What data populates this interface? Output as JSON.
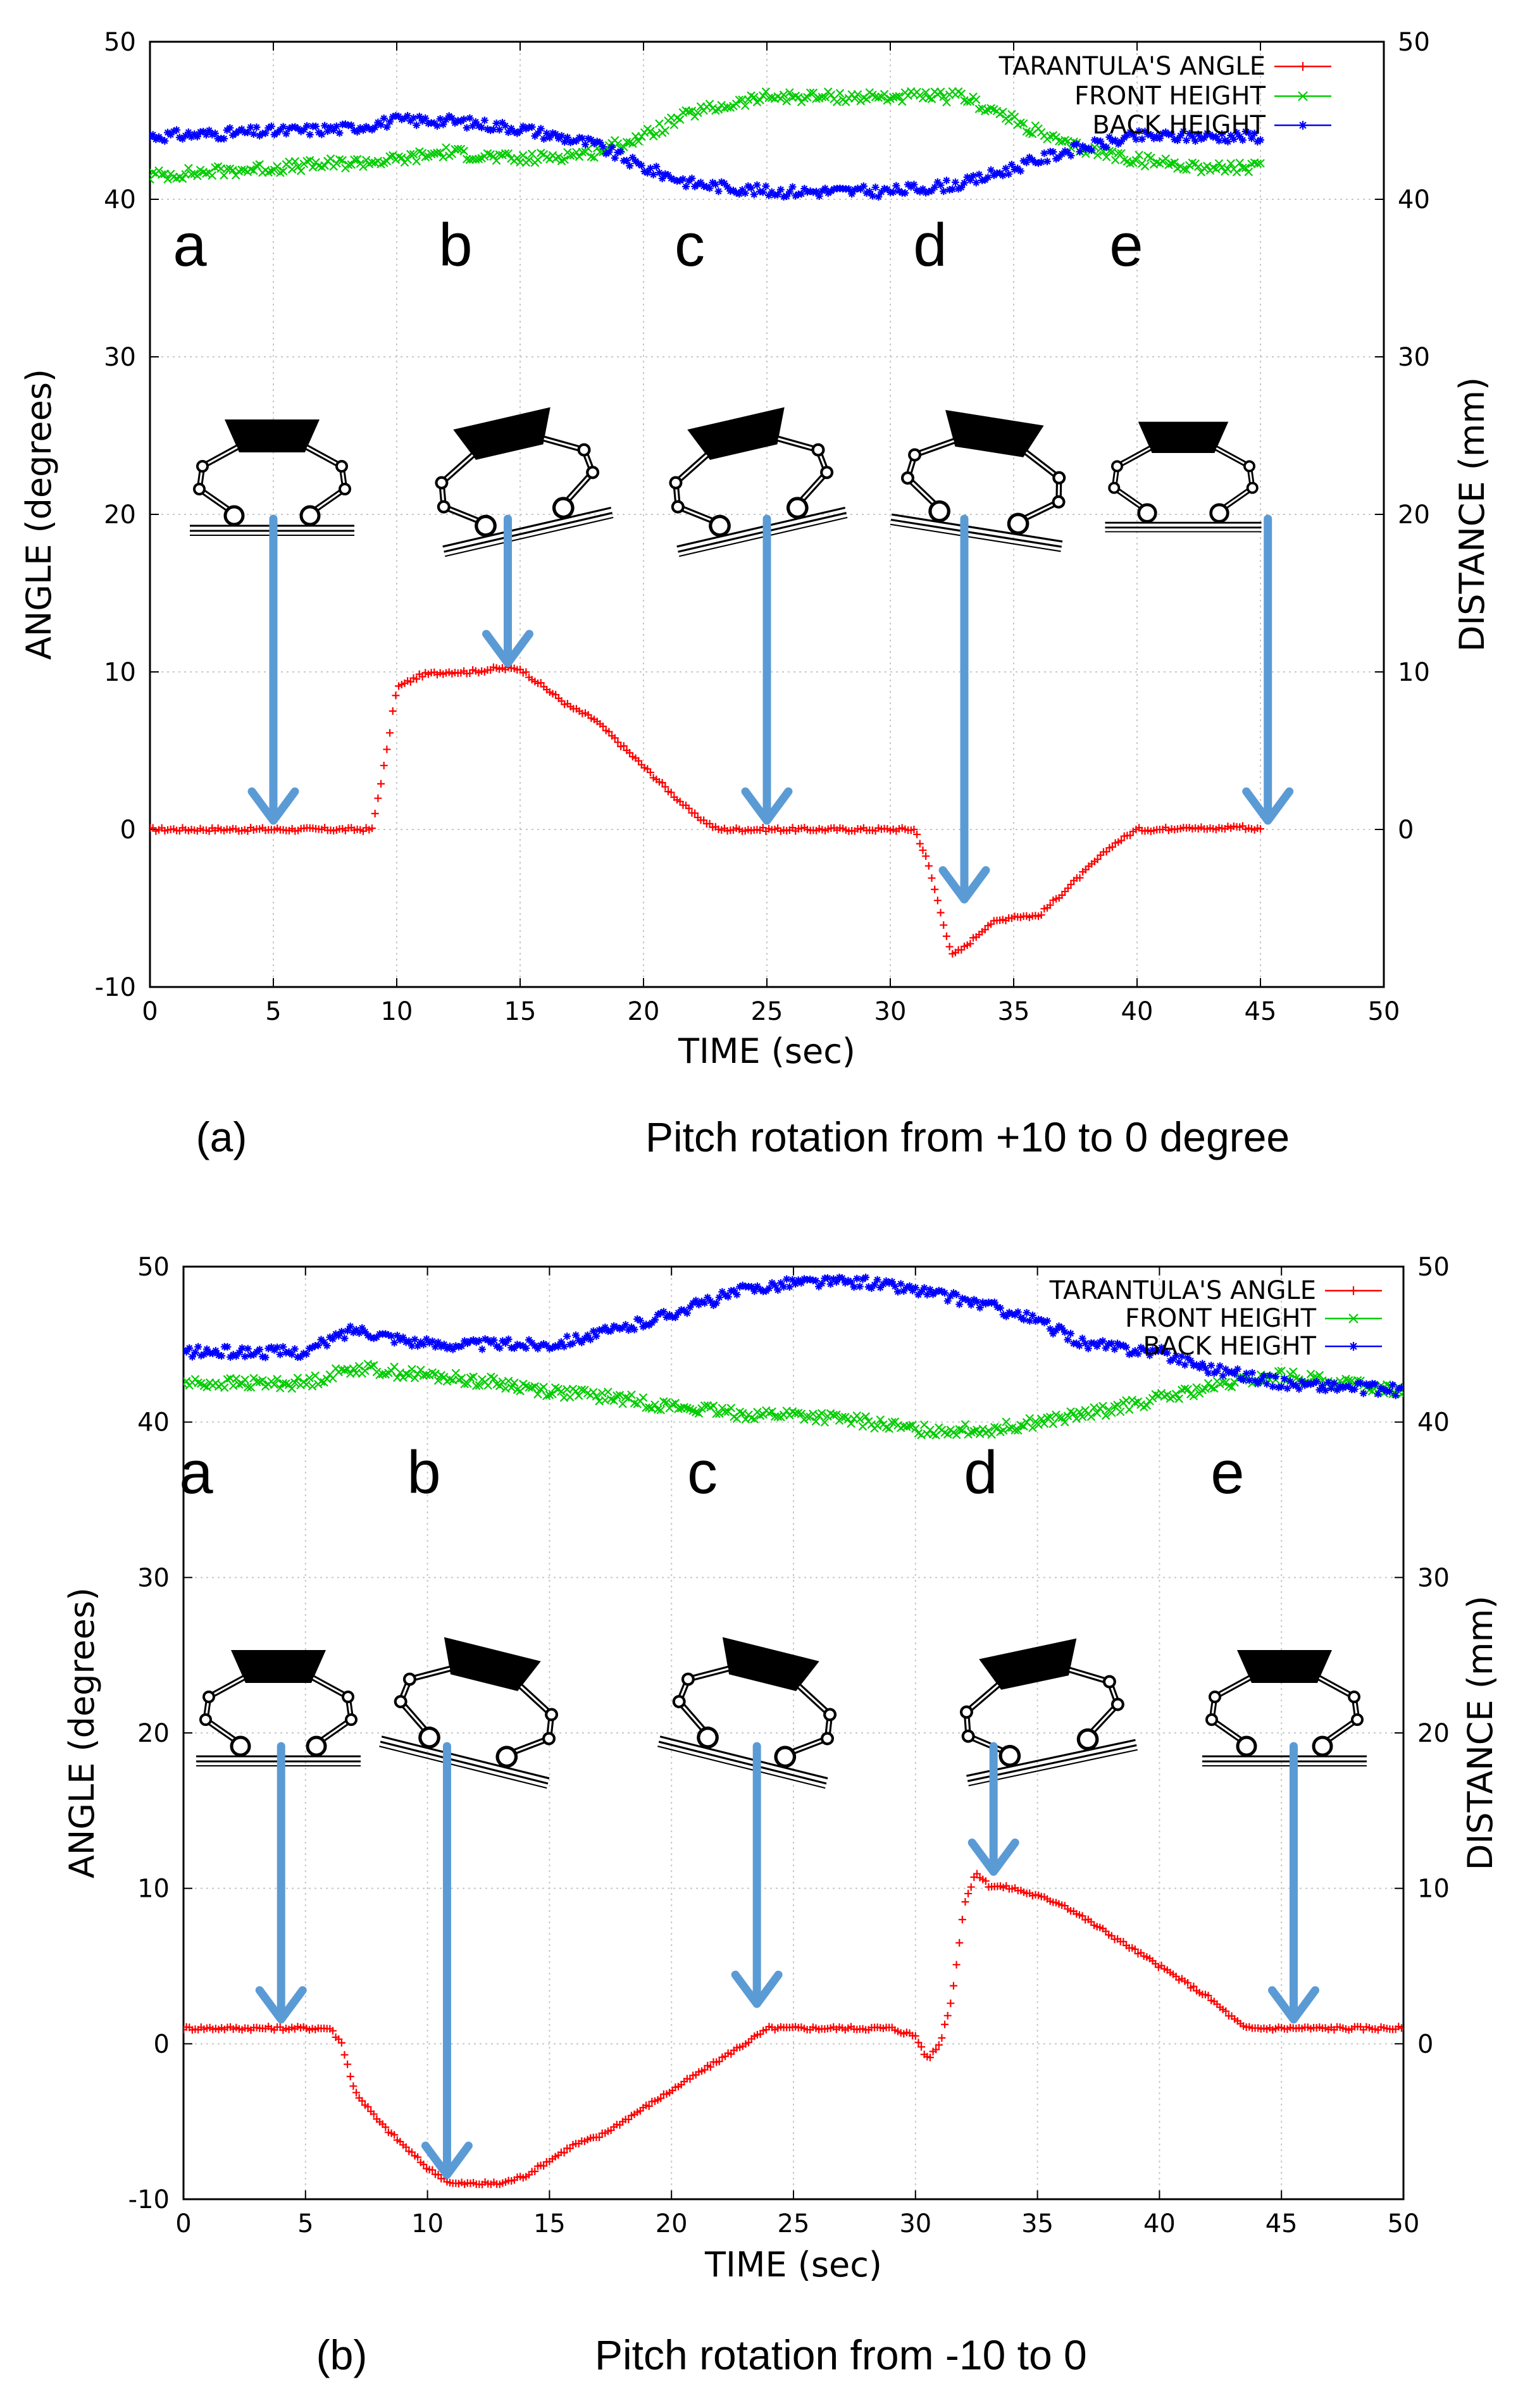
{
  "chart_data": [
    {
      "type": "line",
      "panel": "(a)",
      "caption": "Pitch rotation from +10 to 0 degree",
      "xlabel": "TIME (sec)",
      "ylabel": "ANGLE (degrees)",
      "y2label": "DISTANCE (mm)",
      "xlim": [
        0,
        50
      ],
      "ylim": [
        -10,
        50
      ],
      "y2lim": [
        -10,
        50
      ],
      "xticks": [
        0,
        5,
        10,
        15,
        20,
        25,
        30,
        35,
        40,
        45,
        50
      ],
      "yticks": [
        -10,
        0,
        10,
        20,
        30,
        40,
        50
      ],
      "y2ticks": [
        0,
        10,
        20,
        30,
        40,
        50
      ],
      "grid": true,
      "legend_position": "top-right",
      "series": [
        {
          "name": "TARANTULA'S ANGLE",
          "color": "#ff0000",
          "marker": "+",
          "x": [
            0,
            9,
            9.6,
            10,
            11,
            12,
            13,
            14,
            15,
            16,
            17,
            18,
            19,
            20,
            21,
            22,
            23,
            24,
            31,
            31.5,
            32,
            32.5,
            33,
            34,
            35,
            36,
            37,
            38,
            39,
            40,
            41,
            42,
            43,
            44,
            45
          ],
          "y": [
            0,
            0,
            5,
            9,
            9.8,
            10,
            10,
            10.2,
            10.2,
            9,
            7.8,
            7,
            5.5,
            4,
            2.5,
            1,
            0,
            0,
            0,
            -2,
            -5,
            -8,
            -7.5,
            -6,
            -5.5,
            -5.5,
            -4,
            -2.5,
            -1,
            0,
            0,
            0.2,
            0,
            0.2,
            0
          ]
        },
        {
          "name": "FRONT HEIGHT",
          "color": "#00cc00",
          "marker": "x",
          "x": [
            0,
            5,
            10,
            12,
            15,
            18,
            20,
            22,
            25,
            28,
            30,
            33,
            35,
            37,
            40,
            43,
            45
          ],
          "y": [
            41.5,
            42,
            42.5,
            43,
            42.5,
            43,
            44,
            45.5,
            46.5,
            46.5,
            46.5,
            46.5,
            45,
            43.5,
            42.5,
            42,
            42
          ]
        },
        {
          "name": "BACK HEIGHT",
          "color": "#0000ff",
          "marker": "*",
          "x": [
            0,
            5,
            8,
            10,
            12,
            15,
            18,
            20,
            22,
            25,
            28,
            30,
            33,
            35,
            37,
            40,
            43,
            45
          ],
          "y": [
            44,
            44.3,
            44.5,
            45,
            45,
            44.5,
            43.5,
            42,
            41,
            40.5,
            40.5,
            40.5,
            41,
            42,
            43,
            44,
            44,
            44
          ]
        }
      ],
      "phases": [
        {
          "label": "a",
          "time": 5,
          "angle": 0
        },
        {
          "label": "b",
          "time": 14.5,
          "angle": 10
        },
        {
          "label": "c",
          "time": 25,
          "angle": 0
        },
        {
          "label": "d",
          "time": 33,
          "angle": -5
        },
        {
          "label": "e",
          "time": 45.3,
          "angle": 0
        }
      ]
    },
    {
      "type": "line",
      "panel": "(b)",
      "caption": "Pitch rotation from -10 to 0",
      "xlabel": "TIME (sec)",
      "ylabel": "ANGLE (degrees)",
      "y2label": "DISTANCE (mm)",
      "xlim": [
        0,
        50
      ],
      "ylim": [
        -10,
        50
      ],
      "y2lim": [
        -10,
        50
      ],
      "xticks": [
        0,
        5,
        10,
        15,
        20,
        25,
        30,
        35,
        40,
        45,
        50
      ],
      "yticks": [
        -10,
        0,
        10,
        20,
        30,
        40,
        50
      ],
      "y2ticks": [
        0,
        10,
        20,
        30,
        40,
        50
      ],
      "grid": true,
      "legend_position": "top-right",
      "series": [
        {
          "name": "TARANTULA'S ANGLE",
          "color": "#ff0000",
          "marker": "+",
          "x": [
            0,
            6,
            6.5,
            7,
            8,
            9,
            10,
            11,
            12,
            13,
            14,
            15,
            16,
            17,
            18,
            20,
            22,
            24,
            25,
            27,
            29,
            30,
            30.5,
            31,
            31.5,
            32,
            32.5,
            33,
            34,
            35,
            36,
            38,
            40,
            42,
            43.5,
            45,
            47,
            50
          ],
          "y": [
            1,
            1,
            0,
            -3,
            -5,
            -6.5,
            -8,
            -9,
            -9,
            -9,
            -8.5,
            -7.5,
            -6.5,
            -6,
            -5,
            -3,
            -1,
            1,
            1,
            1,
            1,
            0.5,
            -1,
            0,
            3,
            9,
            11,
            10.2,
            10,
            9.5,
            9,
            7,
            5,
            3,
            1,
            1,
            1,
            1
          ]
        },
        {
          "name": "FRONT HEIGHT",
          "color": "#00cc00",
          "marker": "x",
          "x": [
            0,
            5,
            7,
            10,
            13,
            15,
            18,
            20,
            23,
            25,
            28,
            30,
            33,
            35,
            37,
            40,
            43,
            45,
            50
          ],
          "y": [
            42.5,
            42.5,
            43.5,
            43,
            42.5,
            42,
            41.5,
            41,
            40.5,
            40.5,
            40,
            39.5,
            39.5,
            40,
            40.5,
            41.5,
            42.5,
            43,
            42
          ]
        },
        {
          "name": "BACK HEIGHT",
          "color": "#0000ff",
          "marker": "*",
          "x": [
            0,
            5,
            7,
            10,
            13,
            15,
            18,
            20,
            23,
            25,
            28,
            30,
            33,
            35,
            37,
            40,
            42,
            45,
            50
          ],
          "y": [
            44.5,
            44.5,
            46,
            45,
            45,
            45,
            46,
            47,
            48.5,
            49,
            49,
            48.5,
            47.5,
            46.5,
            45,
            44.5,
            43.5,
            42.5,
            42
          ]
        }
      ],
      "phases": [
        {
          "label": "a",
          "time": 4,
          "angle": 1
        },
        {
          "label": "b",
          "time": 10.8,
          "angle": -9
        },
        {
          "label": "c",
          "time": 23.5,
          "angle": 2
        },
        {
          "label": "d",
          "time": 33.2,
          "angle": 10.5
        },
        {
          "label": "e",
          "time": 45.5,
          "angle": 1
        }
      ]
    }
  ]
}
